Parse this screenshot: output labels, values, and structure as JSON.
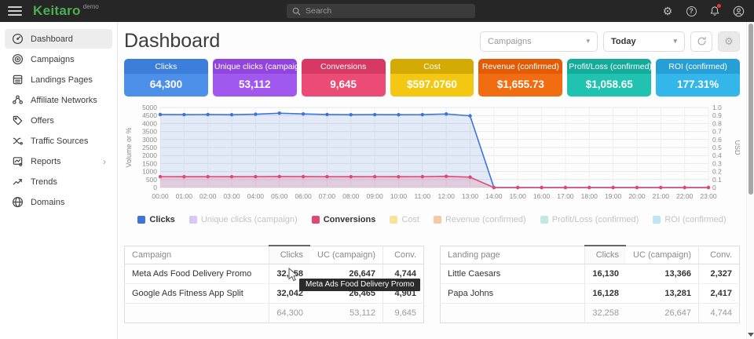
{
  "topbar": {
    "logo": "Keitaro",
    "logo_badge": "demo",
    "search_placeholder": "Search"
  },
  "sidebar": {
    "items": [
      {
        "label": "Dashboard",
        "icon": "gauge-icon",
        "active": true
      },
      {
        "label": "Campaigns",
        "icon": "target-icon",
        "active": false
      },
      {
        "label": "Landings Pages",
        "icon": "pages-icon",
        "active": false
      },
      {
        "label": "Affiliate Networks",
        "icon": "network-icon",
        "active": false
      },
      {
        "label": "Offers",
        "icon": "tag-icon",
        "active": false
      },
      {
        "label": "Traffic Sources",
        "icon": "split-icon",
        "active": false
      },
      {
        "label": "Reports",
        "icon": "report-icon",
        "active": false,
        "chevron": true
      },
      {
        "label": "Trends",
        "icon": "trend-icon",
        "active": false
      },
      {
        "label": "Domains",
        "icon": "globe-icon",
        "active": false
      }
    ]
  },
  "header": {
    "title": "Dashboard",
    "campaigns_filter": "Campaigns",
    "date_filter": "Today"
  },
  "stat_cards": [
    {
      "label": "Clicks",
      "value": "64,300",
      "header_color": "#3c7ed9",
      "body_color": "#4d90ea"
    },
    {
      "label": "Unique clicks (campaign)",
      "value": "53,112",
      "header_color": "#9145dd",
      "body_color": "#a158ef"
    },
    {
      "label": "Conversions",
      "value": "9,645",
      "header_color": "#d63a64",
      "body_color": "#ec4b76"
    },
    {
      "label": "Cost",
      "value": "$597.0760",
      "header_color": "#d4ab05",
      "body_color": "#f4c812"
    },
    {
      "label": "Revenue (confirmed)",
      "value": "$1,655.73",
      "header_color": "#e25c08",
      "body_color": "#f26c11"
    },
    {
      "label": "Profit/Loss (confirmed)",
      "value": "$1,058.65",
      "header_color": "#14ab9b",
      "body_color": "#1fc3b0"
    },
    {
      "label": "ROI (confirmed)",
      "value": "177.31%",
      "header_color": "#279fd6",
      "body_color": "#33b7ea"
    }
  ],
  "chart_data": {
    "type": "line",
    "x": [
      "00:00",
      "01:00",
      "02:00",
      "03:00",
      "04:00",
      "05:00",
      "06:00",
      "07:00",
      "08:00",
      "09:00",
      "10:00",
      "11:00",
      "12:00",
      "13:00",
      "14:00",
      "15:00",
      "16:00",
      "17:00",
      "18:00",
      "19:00",
      "20:00",
      "21:00",
      "22:00",
      "23:00"
    ],
    "ylabel_left": "Volume or %",
    "ylabel_right": "USD",
    "ylim_left": [
      0,
      5000
    ],
    "ytick_step_left": 500,
    "ylim_right": [
      0,
      1.0
    ],
    "ytick_step_right": 0.1,
    "grid": true,
    "legend_position": "bottom",
    "series": [
      {
        "name": "Clicks",
        "color": "#3d74d8",
        "fill": "rgba(66,110,209,0.14)",
        "visible": true,
        "values": [
          4560,
          4555,
          4560,
          4550,
          4580,
          4645,
          4600,
          4560,
          4550,
          4555,
          4550,
          4555,
          4595,
          4480,
          0,
          0,
          0,
          0,
          0,
          0,
          0,
          0,
          0,
          0
        ]
      },
      {
        "name": "Unique clicks (campaign)",
        "color": "#d8c8f4",
        "visible": false,
        "values": []
      },
      {
        "name": "Conversions",
        "color": "#e04873",
        "fill": "rgba(224,72,115,0.18)",
        "visible": true,
        "values": [
          680,
          675,
          680,
          675,
          680,
          690,
          685,
          680,
          675,
          680,
          675,
          680,
          700,
          650,
          0,
          0,
          0,
          0,
          0,
          0,
          0,
          0,
          0,
          0
        ]
      },
      {
        "name": "Cost",
        "color": "#f6e39b",
        "visible": false,
        "values": []
      },
      {
        "name": "Revenue (confirmed)",
        "color": "#f6c9a4",
        "visible": false,
        "values": []
      },
      {
        "name": "Profit/Loss (confirmed)",
        "color": "#bfe9e2",
        "visible": false,
        "values": []
      },
      {
        "name": "ROI (confirmed)",
        "color": "#bfe4f6",
        "visible": false,
        "values": []
      }
    ]
  },
  "tables": {
    "campaigns": {
      "columns": [
        "Campaign",
        "Clicks",
        "UC (campaign)",
        "Conv."
      ],
      "sorted_column": "Clicks",
      "rows": [
        [
          "Meta Ads Food Delivery Promo",
          "32,258",
          "26,647",
          "4,744"
        ],
        [
          "Google Ads Fitness App Split",
          "32,042",
          "26,465",
          "4,901"
        ]
      ],
      "totals": [
        "",
        "64,300",
        "53,112",
        "9,645"
      ]
    },
    "landing_pages": {
      "columns": [
        "Landing page",
        "Clicks",
        "UC (campaign)",
        "Conv."
      ],
      "sorted_column": "Clicks",
      "rows": [
        [
          "Little Caesars",
          "16,130",
          "13,366",
          "2,327"
        ],
        [
          "Papa Johns",
          "16,128",
          "13,281",
          "2,417"
        ]
      ],
      "totals": [
        "",
        "32,258",
        "26,647",
        "4,744"
      ]
    }
  },
  "tooltip": {
    "text": "Meta Ads Food Delivery Promo"
  }
}
